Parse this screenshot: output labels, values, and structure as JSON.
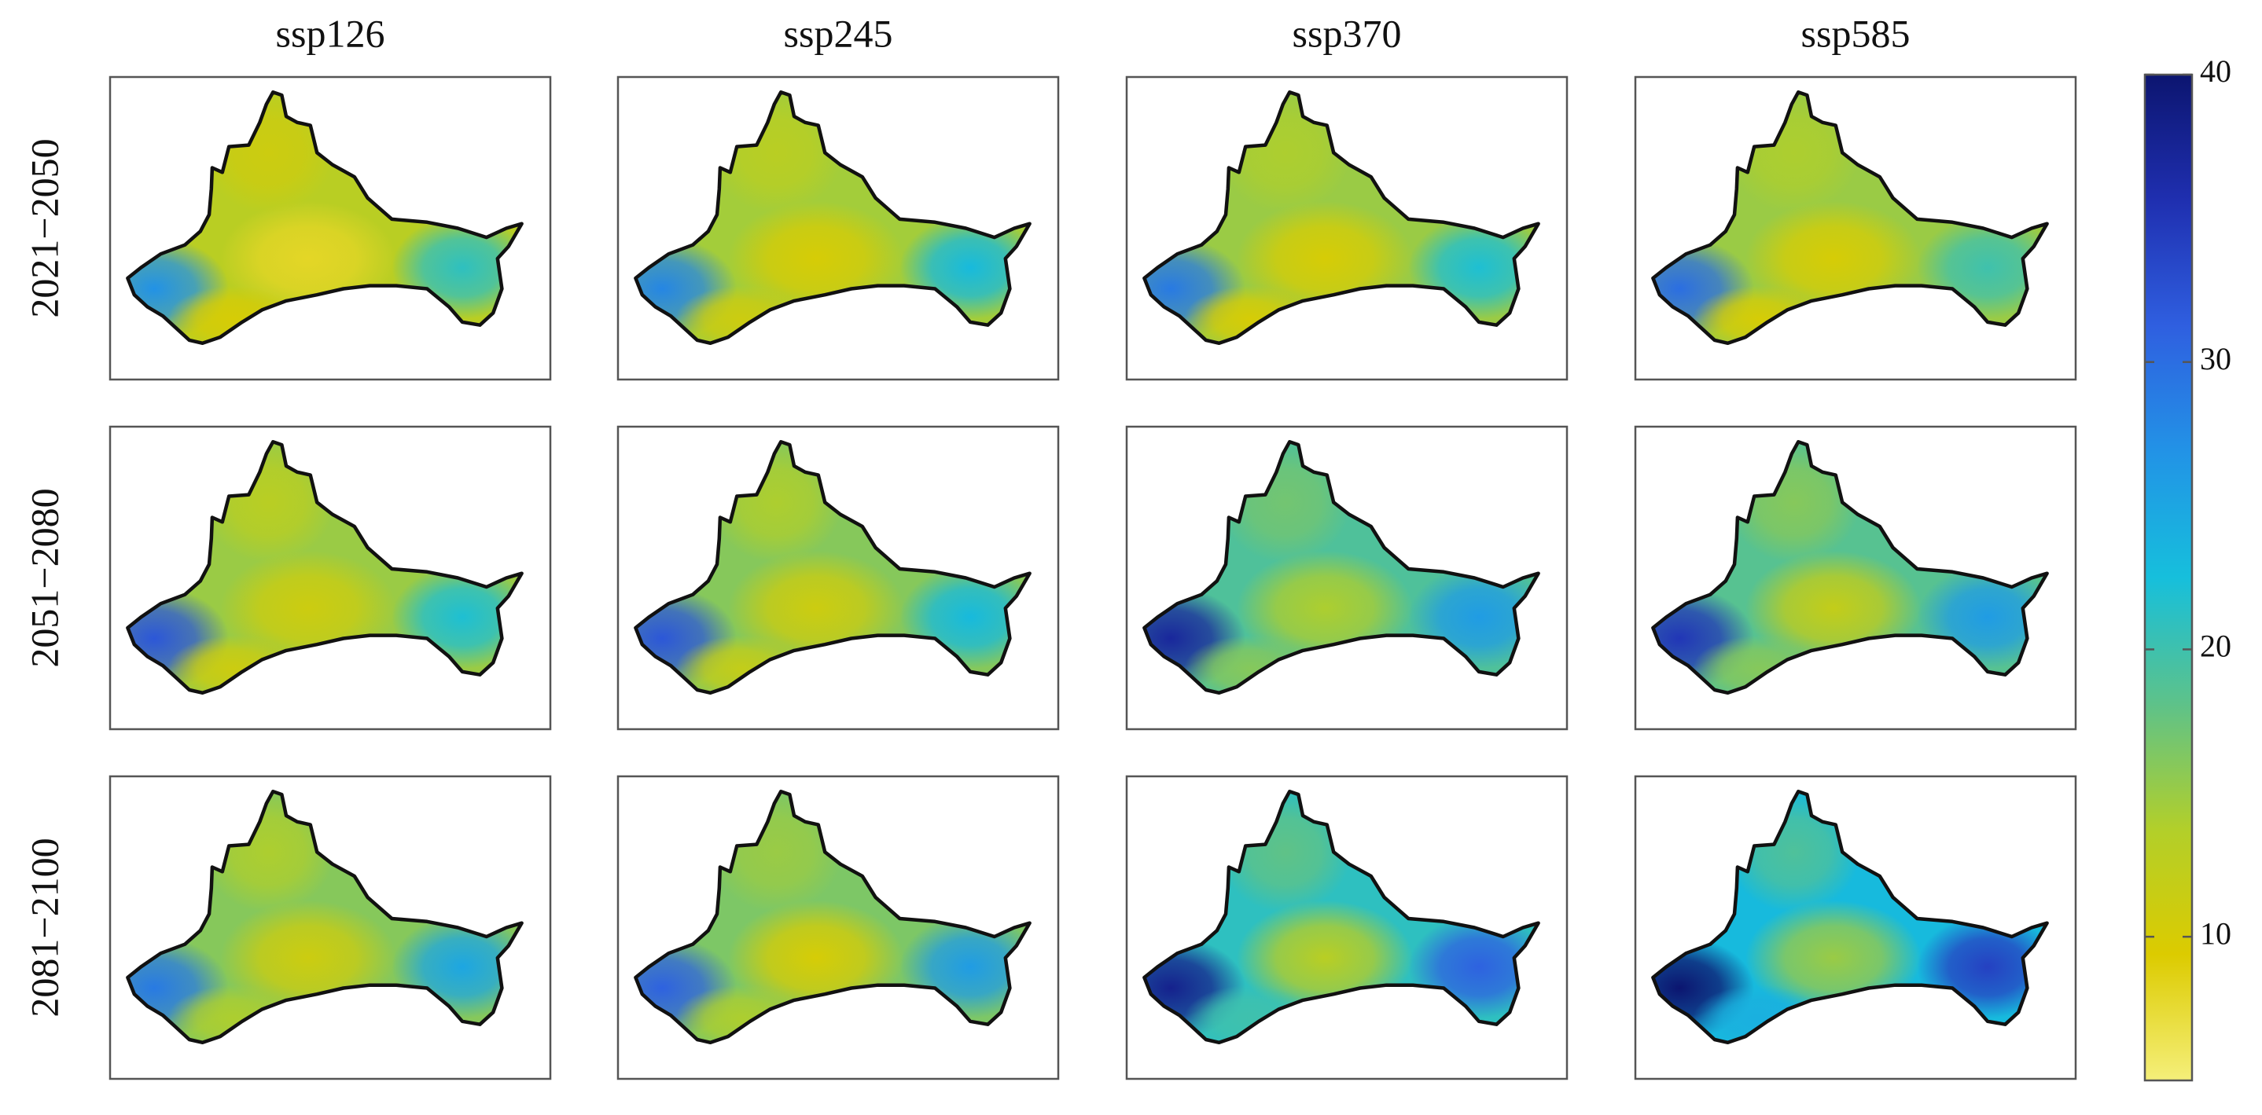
{
  "chart_data": {
    "type": "heatmap",
    "title": "",
    "columns": [
      "ssp126",
      "ssp245",
      "ssp370",
      "ssp585"
    ],
    "rows": [
      "2021−2050",
      "2051−2080",
      "2081−2100"
    ],
    "colorbar": {
      "min": 5,
      "max": 40,
      "ticks": [
        10,
        20,
        30,
        40
      ],
      "tick_labels": [
        "10",
        "20",
        "30",
        "40"
      ],
      "colormap": [
        "#f5ef7a",
        "#dccb00",
        "#b2cf2a",
        "#5dc28a",
        "#16bfdc",
        "#2293e6",
        "#2f5fe0",
        "#1f2fb0",
        "#0c1570"
      ]
    },
    "panels": [
      [
        {
          "mean": 13.0,
          "west": 27,
          "center": 8,
          "north": 11,
          "east": 21,
          "south": 10
        },
        {
          "mean": 14.5,
          "west": 28,
          "center": 10,
          "north": 13,
          "east": 23,
          "south": 11
        },
        {
          "mean": 15.0,
          "west": 29,
          "center": 10,
          "north": 14,
          "east": 22,
          "south": 10
        },
        {
          "mean": 15.0,
          "west": 30,
          "center": 10,
          "north": 14,
          "east": 20,
          "south": 10
        }
      ],
      [
        {
          "mean": 15.0,
          "west": 32,
          "center": 11,
          "north": 13,
          "east": 22,
          "south": 11
        },
        {
          "mean": 16.0,
          "west": 32,
          "center": 11,
          "north": 14,
          "east": 23,
          "south": 12
        },
        {
          "mean": 19.0,
          "west": 37,
          "center": 14,
          "north": 17,
          "east": 26,
          "south": 16
        },
        {
          "mean": 18.5,
          "west": 35,
          "center": 12,
          "north": 16,
          "east": 26,
          "south": 16
        }
      ],
      [
        {
          "mean": 16.0,
          "west": 29,
          "center": 11,
          "north": 14,
          "east": 25,
          "south": 14
        },
        {
          "mean": 16.5,
          "west": 31,
          "center": 10,
          "north": 15,
          "east": 26,
          "south": 14
        },
        {
          "mean": 21.0,
          "west": 38,
          "center": 13,
          "north": 18,
          "east": 31,
          "south": 20
        },
        {
          "mean": 23.0,
          "west": 40,
          "center": 15,
          "north": 19,
          "east": 34,
          "south": 24
        }
      ]
    ]
  }
}
